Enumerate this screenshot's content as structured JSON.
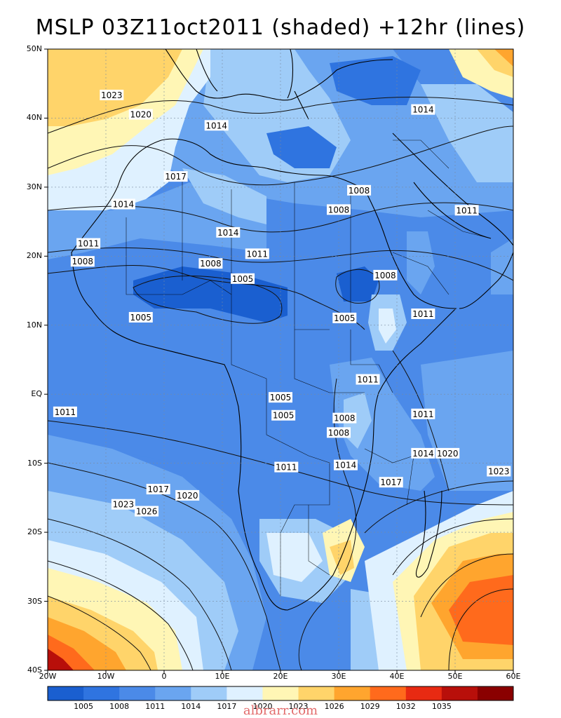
{
  "title": "MSLP 03Z11oct2011 (shaded) +12hr (lines)",
  "lat_labels": [
    "50N",
    "40N",
    "30N",
    "20N",
    "10N",
    "EQ",
    "10S",
    "20S",
    "30S",
    "40S"
  ],
  "lon_labels": [
    "20W",
    "10W",
    "0",
    "10E",
    "20E",
    "30E",
    "40E",
    "50E",
    "60E"
  ],
  "colorbar": {
    "labels": [
      "1005",
      "1008",
      "1011",
      "1014",
      "1017",
      "1020",
      "1023",
      "1026",
      "1029",
      "1032",
      "1035"
    ],
    "colors": [
      "#1a5fd0",
      "#2f74e0",
      "#4b8ae8",
      "#6aa5f0",
      "#9fccf8",
      "#dff1ff",
      "#fff6b5",
      "#ffd46a",
      "#ffa52e",
      "#ff6a1c",
      "#e82a12",
      "#b80f0a",
      "#8a0000"
    ]
  },
  "contour_labels": [
    {
      "text": "1023",
      "lon": -9,
      "lat": 43.3
    },
    {
      "text": "1020",
      "lon": -4,
      "lat": 40.5
    },
    {
      "text": "1014",
      "lon": 9,
      "lat": 38.9
    },
    {
      "text": "1014",
      "lon": 44.5,
      "lat": 41.2
    },
    {
      "text": "1017",
      "lon": 2,
      "lat": 31.5
    },
    {
      "text": "1014",
      "lon": -7,
      "lat": 27.5
    },
    {
      "text": "1008",
      "lon": 33.5,
      "lat": 29.5
    },
    {
      "text": "1011",
      "lon": 52,
      "lat": 26.6
    },
    {
      "text": "1008",
      "lon": 30,
      "lat": 26.7
    },
    {
      "text": "1014",
      "lon": 11,
      "lat": 23.4
    },
    {
      "text": "1011",
      "lon": -13,
      "lat": 21.8
    },
    {
      "text": "1011",
      "lon": 16,
      "lat": 20.3
    },
    {
      "text": "1008",
      "lon": -14,
      "lat": 19.2
    },
    {
      "text": "1008",
      "lon": 8,
      "lat": 18.9
    },
    {
      "text": "1008",
      "lon": 38,
      "lat": 17.2
    },
    {
      "text": "1005",
      "lon": 13.5,
      "lat": 16.7
    },
    {
      "text": "1011",
      "lon": 44.5,
      "lat": 11.6
    },
    {
      "text": "1005",
      "lon": -4,
      "lat": 11.1
    },
    {
      "text": "1005",
      "lon": 31,
      "lat": 11
    },
    {
      "text": "1011",
      "lon": 35,
      "lat": 2.1
    },
    {
      "text": "1005",
      "lon": 20,
      "lat": -0.5
    },
    {
      "text": "1011",
      "lon": -17,
      "lat": -2.6
    },
    {
      "text": "1011",
      "lon": 44.5,
      "lat": -2.9
    },
    {
      "text": "1005",
      "lon": 20.5,
      "lat": -3.1
    },
    {
      "text": "1008",
      "lon": 31,
      "lat": -3.5
    },
    {
      "text": "1008",
      "lon": 30,
      "lat": -5.6
    },
    {
      "text": "1014",
      "lon": 44.5,
      "lat": -8.6
    },
    {
      "text": "1020",
      "lon": 48.7,
      "lat": -8.6
    },
    {
      "text": "1011",
      "lon": 21,
      "lat": -10.6
    },
    {
      "text": "1014",
      "lon": 31.2,
      "lat": -10.3
    },
    {
      "text": "1023",
      "lon": 57.5,
      "lat": -11.2
    },
    {
      "text": "1017",
      "lon": 39,
      "lat": -12.8
    },
    {
      "text": "1017",
      "lon": -1,
      "lat": -13.8
    },
    {
      "text": "1020",
      "lon": 4,
      "lat": -14.7
    },
    {
      "text": "1023",
      "lon": -7,
      "lat": -16.0
    },
    {
      "text": "1026",
      "lon": -3,
      "lat": -17.0
    }
  ],
  "watermark": "albrarr.com"
}
